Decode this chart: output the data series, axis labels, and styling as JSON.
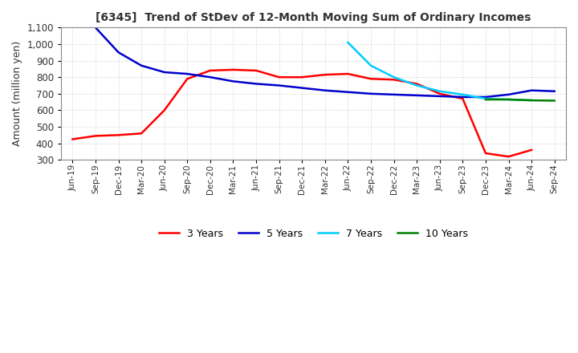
{
  "title": "[6345]  Trend of StDev of 12-Month Moving Sum of Ordinary Incomes",
  "ylabel": "Amount (million yen)",
  "ylim": [
    300,
    1100
  ],
  "yticks": [
    300,
    400,
    500,
    600,
    700,
    800,
    900,
    1000,
    1100
  ],
  "background_color": "#ffffff",
  "grid_color": "#aaaaaa",
  "title_color": "#333333",
  "x_labels": [
    "Jun-19",
    "Sep-19",
    "Dec-19",
    "Mar-20",
    "Jun-20",
    "Sep-20",
    "Dec-20",
    "Mar-21",
    "Jun-21",
    "Sep-21",
    "Dec-21",
    "Mar-22",
    "Jun-22",
    "Sep-22",
    "Dec-22",
    "Mar-23",
    "Jun-23",
    "Sep-23",
    "Dec-23",
    "Mar-24",
    "Jun-24",
    "Sep-24"
  ],
  "series": {
    "3 Years": {
      "color": "#ff0000",
      "data": [
        425,
        445,
        450,
        460,
        600,
        790,
        840,
        845,
        840,
        800,
        800,
        815,
        820,
        790,
        785,
        760,
        700,
        670,
        340,
        320,
        360,
        null
      ]
    },
    "5 Years": {
      "color": "#0000cc",
      "data": [
        null,
        1100,
        950,
        870,
        830,
        820,
        800,
        775,
        760,
        750,
        735,
        720,
        710,
        700,
        695,
        690,
        685,
        680,
        680,
        695,
        720,
        715
      ]
    },
    "7 Years": {
      "color": "#00ccff",
      "data": [
        null,
        null,
        null,
        null,
        null,
        null,
        null,
        null,
        null,
        null,
        null,
        null,
        1010,
        870,
        800,
        750,
        715,
        695,
        670,
        665,
        660,
        null
      ]
    },
    "10 Years": {
      "color": "#008000",
      "data": [
        null,
        null,
        null,
        null,
        null,
        null,
        null,
        null,
        null,
        null,
        null,
        null,
        null,
        null,
        null,
        null,
        null,
        null,
        665,
        665,
        660,
        658
      ]
    }
  },
  "legend_labels": [
    "3 Years",
    "5 Years",
    "7 Years",
    "10 Years"
  ],
  "legend_colors": [
    "#ff0000",
    "#0000cc",
    "#00ccff",
    "#008000"
  ]
}
